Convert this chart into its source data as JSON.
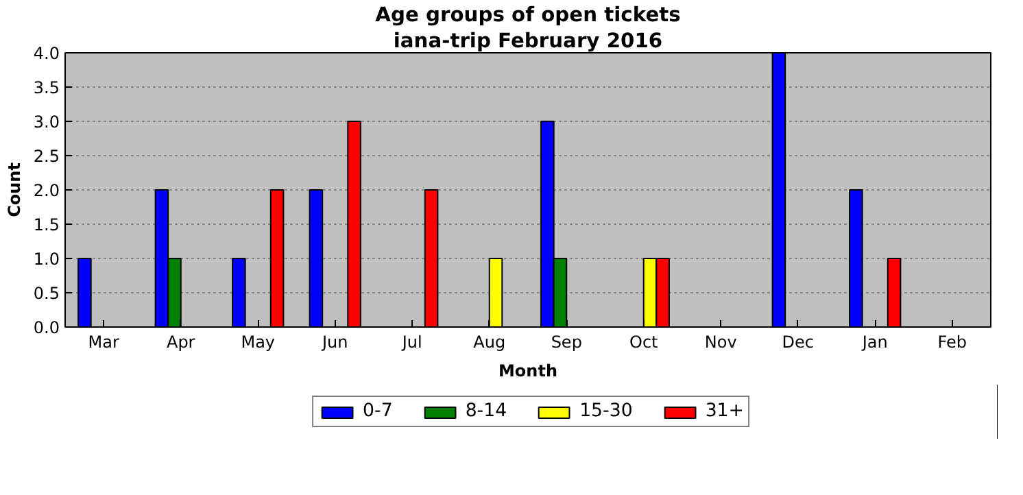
{
  "chart_data": {
    "type": "bar",
    "title": "Age groups of open tickets",
    "subtitle": "iana-trip February 2016",
    "xlabel": "Month",
    "ylabel": "Count",
    "categories": [
      "Mar",
      "Apr",
      "May",
      "Jun",
      "Jul",
      "Aug",
      "Sep",
      "Oct",
      "Nov",
      "Dec",
      "Jan",
      "Feb"
    ],
    "series": [
      {
        "name": "0-7",
        "color": "#0000ff",
        "values": [
          1,
          2,
          1,
          2,
          0,
          0,
          3,
          0,
          0,
          4,
          2,
          0
        ]
      },
      {
        "name": "8-14",
        "color": "#008000",
        "values": [
          0,
          1,
          0,
          0,
          0,
          0,
          1,
          0,
          0,
          0,
          0,
          0
        ]
      },
      {
        "name": "15-30",
        "color": "#ffff00",
        "values": [
          0,
          0,
          0,
          0,
          0,
          1,
          0,
          1,
          0,
          0,
          0,
          0
        ]
      },
      {
        "name": "31+",
        "color": "#ff0000",
        "values": [
          0,
          0,
          2,
          3,
          2,
          0,
          0,
          1,
          0,
          0,
          1,
          0
        ]
      }
    ],
    "ylim": [
      0,
      4
    ],
    "yticks": [
      {
        "value": 0,
        "label": "0.0"
      },
      {
        "value": 0.5,
        "label": "0.5"
      },
      {
        "value": 1,
        "label": "1.0"
      },
      {
        "value": 1.5,
        "label": "1.5"
      },
      {
        "value": 2,
        "label": "2.0"
      },
      {
        "value": 2.5,
        "label": "2.5"
      },
      {
        "value": 3,
        "label": "3.0"
      },
      {
        "value": 3.5,
        "label": "3.5"
      },
      {
        "value": 4,
        "label": "4.0"
      }
    ],
    "grid": "y",
    "legend": "bottom"
  }
}
